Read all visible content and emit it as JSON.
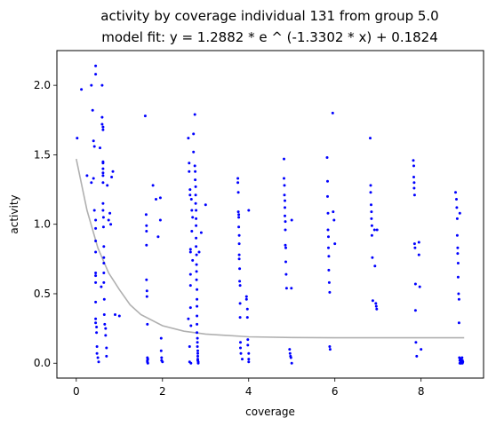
{
  "chart_data": {
    "type": "scatter",
    "title": "activity by coverage individual 131 from group 5.0",
    "subtitle": "model fit: y = 1.2882 * e ^ (-1.3302 * x) + 0.1824",
    "xlabel": "coverage",
    "ylabel": "activity",
    "xlim": [
      -0.45,
      9.45
    ],
    "ylim": [
      -0.107,
      2.25
    ],
    "xticks": [
      0,
      2,
      4,
      6,
      8
    ],
    "xtick_labels": [
      "0",
      "2",
      "4",
      "6",
      "8"
    ],
    "yticks": [
      0.0,
      0.5,
      1.0,
      1.5,
      2.0
    ],
    "ytick_labels": [
      "0.0",
      "0.5",
      "1.0",
      "1.5",
      "2.0"
    ],
    "grid": false,
    "point_color": "#0000ff",
    "fit_color": "#b0b0b0",
    "series": [
      {
        "x": [
          0.02,
          0.12,
          0.25,
          0.35,
          0.35,
          0.38,
          0.4,
          0.4,
          0.42,
          0.42,
          0.45,
          0.45,
          0.45,
          0.45,
          0.45,
          0.45,
          0.45,
          0.45,
          0.45,
          0.45,
          0.45,
          0.45,
          0.47,
          0.47,
          0.48,
          0.48,
          0.5,
          0.52,
          0.55,
          0.58,
          0.6,
          0.6,
          0.6,
          0.62,
          0.62,
          0.62,
          0.62,
          0.62,
          0.62,
          0.62,
          0.62,
          0.62,
          0.62,
          0.63,
          0.63,
          0.64,
          0.64,
          0.64,
          0.64,
          0.64,
          0.65,
          0.65,
          0.66,
          0.68,
          0.68,
          0.7,
          0.7,
          0.72,
          0.75,
          0.78,
          0.8,
          0.82,
          0.85,
          0.9,
          1.0,
          1.6,
          1.62,
          1.63,
          1.63,
          1.63,
          1.63,
          1.64,
          1.64,
          1.65,
          1.65,
          1.65,
          1.65,
          1.66,
          1.66,
          1.78,
          1.85,
          1.9,
          1.95,
          1.95,
          1.97,
          1.97,
          1.98,
          1.98,
          2.0,
          2.6,
          2.6,
          2.62,
          2.62,
          2.63,
          2.63,
          2.64,
          2.64,
          2.65,
          2.65,
          2.65,
          2.65,
          2.65,
          2.66,
          2.66,
          2.67,
          2.68,
          2.68,
          2.7,
          2.7,
          2.72,
          2.72,
          2.75,
          2.75,
          2.76,
          2.76,
          2.77,
          2.77,
          2.77,
          2.78,
          2.78,
          2.78,
          2.78,
          2.78,
          2.79,
          2.79,
          2.79,
          2.79,
          2.8,
          2.8,
          2.8,
          2.8,
          2.8,
          2.8,
          2.81,
          2.81,
          2.81,
          2.82,
          2.82,
          2.82,
          2.82,
          2.82,
          2.83,
          2.83,
          2.85,
          2.9,
          3.0,
          3.75,
          3.75,
          3.76,
          3.76,
          3.77,
          3.77,
          3.77,
          3.78,
          3.78,
          3.78,
          3.78,
          3.79,
          3.79,
          3.8,
          3.8,
          3.8,
          3.81,
          3.81,
          3.82,
          3.85,
          3.95,
          3.95,
          3.97,
          3.97,
          3.98,
          3.98,
          4.0,
          4.0,
          4.0,
          4.0,
          4.82,
          4.82,
          4.83,
          4.83,
          4.84,
          4.84,
          4.84,
          4.85,
          4.85,
          4.85,
          4.86,
          4.86,
          4.87,
          4.88,
          4.95,
          4.96,
          4.97,
          4.98,
          4.99,
          5.0,
          5.0,
          5.82,
          5.83,
          5.83,
          5.84,
          5.84,
          5.85,
          5.85,
          5.86,
          5.86,
          5.87,
          5.88,
          5.88,
          5.89,
          5.95,
          5.96,
          5.98,
          6.0,
          6.82,
          6.83,
          6.83,
          6.84,
          6.85,
          6.85,
          6.86,
          6.86,
          6.87,
          6.88,
          6.92,
          6.93,
          6.95,
          6.96,
          6.97,
          6.98,
          7.82,
          7.83,
          7.83,
          7.84,
          7.84,
          7.85,
          7.85,
          7.86,
          7.87,
          7.87,
          7.88,
          7.9,
          7.95,
          7.95,
          7.97,
          8.0,
          8.8,
          8.82,
          8.83,
          8.84,
          8.84,
          8.85,
          8.85,
          8.86,
          8.86,
          8.87,
          8.88,
          8.88,
          8.89,
          8.9,
          8.9,
          8.9,
          8.91,
          8.92,
          8.92,
          8.93,
          8.93,
          8.94,
          8.95,
          8.95,
          8.96,
          8.96,
          8.97
        ],
        "y": [
          1.62,
          1.97,
          1.35,
          2.0,
          1.3,
          1.82,
          1.6,
          1.33,
          1.56,
          1.1,
          2.14,
          2.08,
          1.03,
          0.97,
          0.88,
          0.8,
          0.65,
          0.63,
          0.58,
          0.44,
          0.32,
          0.29,
          0.26,
          0.22,
          0.12,
          0.07,
          0.04,
          0.01,
          1.55,
          0.55,
          2.0,
          1.77,
          1.72,
          1.7,
          1.68,
          1.45,
          1.44,
          1.4,
          1.37,
          1.35,
          1.3,
          1.15,
          1.1,
          1.05,
          0.98,
          0.84,
          0.76,
          0.72,
          0.65,
          0.58,
          0.46,
          0.35,
          0.28,
          0.25,
          0.2,
          0.11,
          0.05,
          1.28,
          1.03,
          1.08,
          1.0,
          1.34,
          1.38,
          0.35,
          0.34,
          1.78,
          1.07,
          0.99,
          0.95,
          0.85,
          0.6,
          0.52,
          0.48,
          0.28,
          0.04,
          0.02,
          0.01,
          0.0,
          0.03,
          1.28,
          1.18,
          0.91,
          1.19,
          1.03,
          0.18,
          0.09,
          0.04,
          0.02,
          0.01,
          1.62,
          0.32,
          1.44,
          1.38,
          0.12,
          0.01,
          1.25,
          1.21,
          0.82,
          0.8,
          0.64,
          0.56,
          0.4,
          0.27,
          0.0,
          1.18,
          1.1,
          0.95,
          1.05,
          0.74,
          1.65,
          1.52,
          1.79,
          1.42,
          1.38,
          1.32,
          1.27,
          1.21,
          1.15,
          1.1,
          1.04,
          0.99,
          0.9,
          0.84,
          0.78,
          0.71,
          0.66,
          0.6,
          0.53,
          0.46,
          0.41,
          0.34,
          0.28,
          0.22,
          0.18,
          0.15,
          0.12,
          0.09,
          0.07,
          0.05,
          0.03,
          0.02,
          0.01,
          0.0,
          0.8,
          0.94,
          1.14,
          1.33,
          1.3,
          1.23,
          1.09,
          1.07,
          1.05,
          0.98,
          0.92,
          0.86,
          0.78,
          0.75,
          0.68,
          0.59,
          0.56,
          0.43,
          0.33,
          0.15,
          0.11,
          0.07,
          0.03,
          0.46,
          0.48,
          0.39,
          0.33,
          0.17,
          0.13,
          1.1,
          0.07,
          0.03,
          0.01,
          1.47,
          1.33,
          1.28,
          1.21,
          1.17,
          1.12,
          1.06,
          1.02,
          0.96,
          0.85,
          0.83,
          0.73,
          0.64,
          0.54,
          0.1,
          0.07,
          0.05,
          0.04,
          0.54,
          1.03,
          0.0,
          1.48,
          1.31,
          1.2,
          1.08,
          0.96,
          0.91,
          0.83,
          0.77,
          0.67,
          0.58,
          0.51,
          0.12,
          0.1,
          1.8,
          1.09,
          1.03,
          0.86,
          1.62,
          1.28,
          1.23,
          1.14,
          1.09,
          1.04,
          0.99,
          0.92,
          0.76,
          0.45,
          0.96,
          0.7,
          0.43,
          0.41,
          0.39,
          0.96,
          1.46,
          1.42,
          1.34,
          1.3,
          1.26,
          1.21,
          0.86,
          0.83,
          0.57,
          0.38,
          0.15,
          0.05,
          0.87,
          0.78,
          0.55,
          0.1,
          1.23,
          1.18,
          1.12,
          1.04,
          0.92,
          0.83,
          0.79,
          0.72,
          0.62,
          0.5,
          0.46,
          0.29,
          0.04,
          0.02,
          0.0,
          1.08,
          0.03,
          0.01,
          0.0,
          0.02,
          0.0,
          0.01,
          0.04,
          0.02,
          0.0,
          0.02,
          0.01
        ]
      }
    ],
    "fit": {
      "x": [
        0.0,
        0.25,
        0.5,
        0.75,
        1.0,
        1.25,
        1.5,
        2.0,
        2.5,
        3.0,
        4.0,
        5.0,
        6.0,
        7.0,
        8.0,
        9.0
      ],
      "y": [
        1.47,
        1.1,
        0.83,
        0.65,
        0.53,
        0.42,
        0.35,
        0.27,
        0.23,
        0.21,
        0.19,
        0.185,
        0.183,
        0.183,
        0.183,
        0.183
      ]
    }
  }
}
